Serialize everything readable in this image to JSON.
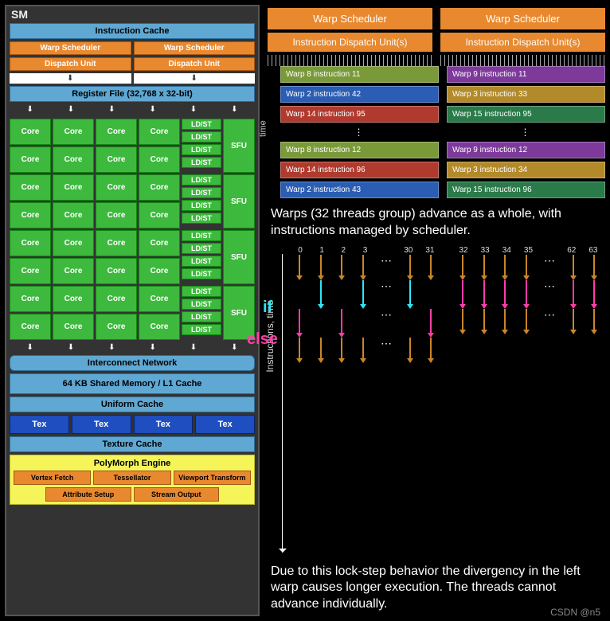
{
  "sm": {
    "title": "SM",
    "instruction_cache": "Instruction Cache",
    "warp_sched": "Warp Scheduler",
    "dispatch_unit": "Dispatch Unit",
    "register_file": "Register File (32,768 x 32-bit)",
    "core": "Core",
    "ldst": "LD/ST",
    "sfu": "SFU",
    "interconnect": "Interconnect Network",
    "shared_mem": "64 KB Shared Memory / L1 Cache",
    "uniform_cache": "Uniform Cache",
    "tex": "Tex",
    "texture_cache": "Texture Cache",
    "polymorph": "PolyMorph Engine",
    "pm_buttons": [
      "Vertex Fetch",
      "Tessellator",
      "Viewport Transform",
      "Attribute Setup",
      "Stream Output"
    ],
    "colors": {
      "orange": "#e8892f",
      "blue": "#5fa8d3",
      "green": "#3db93d",
      "darkblue": "#1e4ebf",
      "yellow": "#f5f55a",
      "gray": "#333"
    }
  },
  "wsched": {
    "header": "Warp Scheduler",
    "dispatch": "Instruction Dispatch Unit(s)",
    "time_label": "time",
    "left": [
      {
        "text": "Warp 8 instruction 11",
        "bg": "#7a9a3a"
      },
      {
        "text": "Warp 2 instruction 42",
        "bg": "#2a5db3"
      },
      {
        "text": "Warp 14 instruction 95",
        "bg": "#b03a2e"
      },
      {
        "text": "Warp 8 instruction 12",
        "bg": "#7a9a3a"
      },
      {
        "text": "Warp 14 instruction 96",
        "bg": "#b03a2e"
      },
      {
        "text": "Warp 2 instruction 43",
        "bg": "#2a5db3"
      }
    ],
    "right": [
      {
        "text": "Warp 9 instruction 11",
        "bg": "#7d3a9a"
      },
      {
        "text": "Warp 3 instruction 33",
        "bg": "#b38a2a"
      },
      {
        "text": "Warp 15 instruction 95",
        "bg": "#2a7a4a"
      },
      {
        "text": "Warp 9 instruction 12",
        "bg": "#7d3a9a"
      },
      {
        "text": "Warp 3 instruction 34",
        "bg": "#b38a2a"
      },
      {
        "text": "Warp 15 instruction 96",
        "bg": "#2a7a4a"
      }
    ]
  },
  "caption1": "Warps (32 threads group) advance as a whole, with instructions managed by scheduler.",
  "divergence": {
    "axis_label": "Instructions, time",
    "lane_nums_left": [
      "0",
      "1",
      "2",
      "3",
      "30",
      "31"
    ],
    "lane_nums_right": [
      "32",
      "33",
      "34",
      "35",
      "62",
      "63"
    ],
    "if_label": "if",
    "else_label": "else",
    "arrow_colors": {
      "brown": "#c8862a",
      "cyan": "#2ee6f5",
      "pink": "#ff3da8"
    }
  },
  "caption2": "Due to this lock-step behavior the divergency in the left warp causes longer execution. The threads cannot advance individually.",
  "watermark": "CSDN @n5"
}
